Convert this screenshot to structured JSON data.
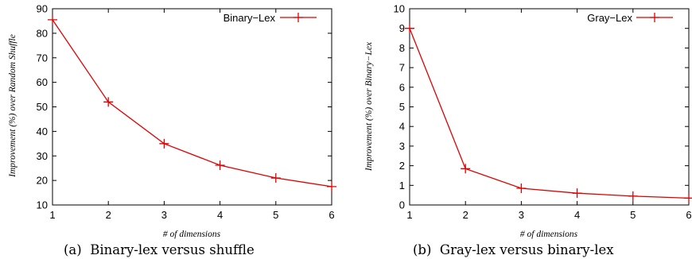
{
  "chart_data": [
    {
      "type": "line",
      "caption": "(a)  Binary-lex versus shuffle",
      "xlabel": "# of dimensions",
      "ylabel": "Improvement (%) over Random Shuffle",
      "x": [
        1,
        2,
        3,
        4,
        5,
        6
      ],
      "xlim": [
        1,
        6
      ],
      "ylim": [
        10,
        90
      ],
      "yticks": [
        10,
        20,
        30,
        40,
        50,
        60,
        70,
        80,
        90
      ],
      "legend": "top-right",
      "grid": false,
      "series": [
        {
          "name": "Binary−Lex",
          "color": "#e00000",
          "marker": "plus",
          "values": [
            85.5,
            52.0,
            35.0,
            26.2,
            21.0,
            17.5
          ]
        }
      ]
    },
    {
      "type": "line",
      "caption": "(b)  Gray-lex versus binary-lex",
      "xlabel": "# of dimensions",
      "ylabel": "Improvement (%) over Binary−Lex",
      "x": [
        1,
        2,
        3,
        4,
        5,
        6
      ],
      "xlim": [
        1,
        6
      ],
      "ylim": [
        0,
        10
      ],
      "yticks": [
        0,
        1,
        2,
        3,
        4,
        5,
        6,
        7,
        8,
        9,
        10
      ],
      "legend": "top-right",
      "grid": false,
      "series": [
        {
          "name": "Gray−Lex",
          "color": "#e00000",
          "marker": "plus",
          "values": [
            9.0,
            1.85,
            0.85,
            0.6,
            0.45,
            0.35
          ]
        }
      ]
    }
  ]
}
